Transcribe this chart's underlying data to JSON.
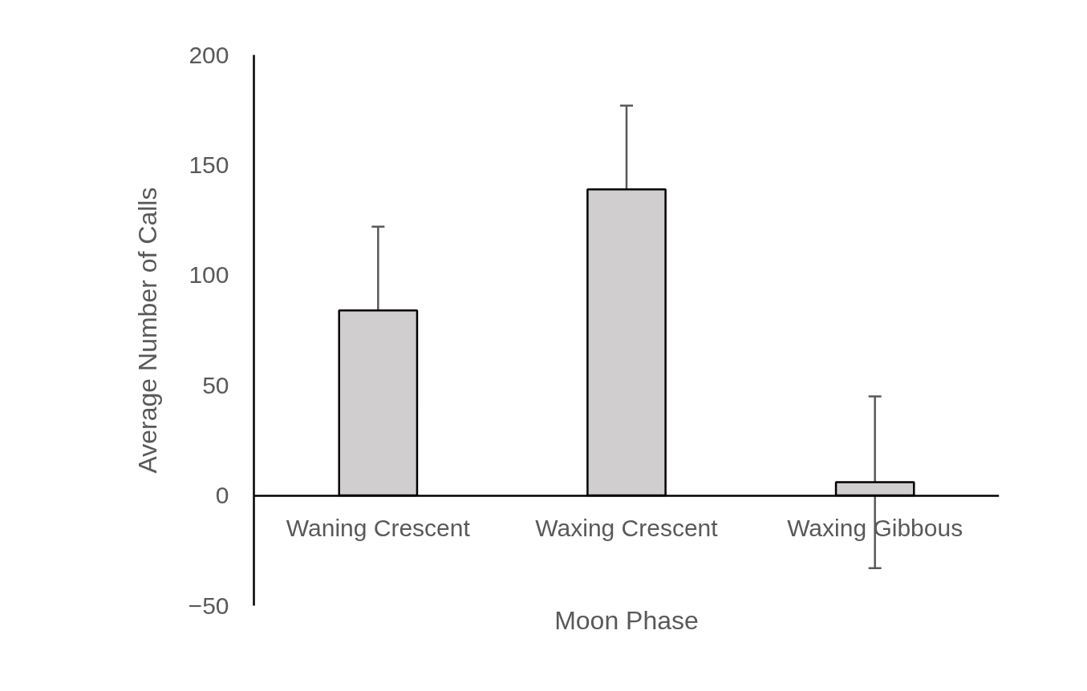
{
  "chart_data": {
    "type": "bar",
    "categories": [
      "Waning Crescent",
      "Waxing Crescent",
      "Waxing Gibbous"
    ],
    "values": [
      84,
      139,
      6
    ],
    "errors": [
      38,
      38,
      39
    ],
    "color": "#d0cece",
    "xlabel": "Moon Phase",
    "ylabel": "Average Number of Calls",
    "ylim": [
      -50,
      200
    ],
    "yticks": [
      -50,
      0,
      50,
      100,
      150,
      200
    ]
  }
}
